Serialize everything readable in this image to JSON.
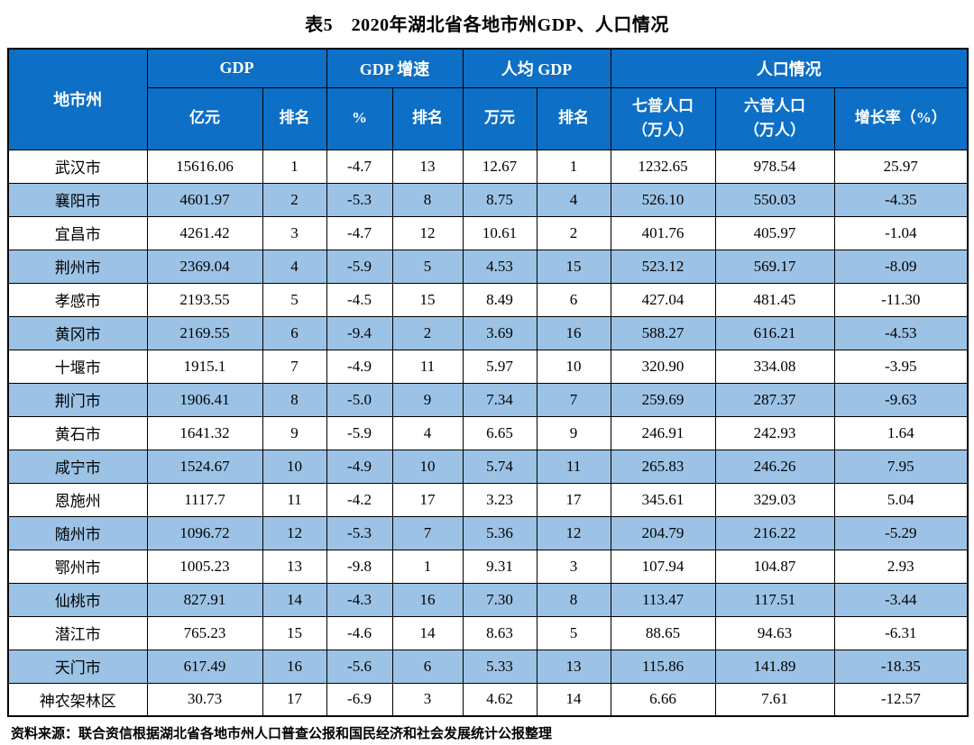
{
  "title": "表5　2020年湖北省各地市州GDP、人口情况",
  "colors": {
    "header_bg": "#0d6fc5",
    "alt_row_bg": "#9cc3e6",
    "border": "#000000",
    "header_text": "#ffffff"
  },
  "table": {
    "header": {
      "region_label": "地市州",
      "groups": [
        {
          "label": "GDP"
        },
        {
          "label": "GDP 增速"
        },
        {
          "label": "人均 GDP"
        },
        {
          "label": "人口情况"
        }
      ],
      "subheaders": [
        "亿元",
        "排名",
        "%",
        "排名",
        "万元",
        "排名",
        "七普人口\n（万人）",
        "六普人口\n（万人）",
        "增长率（%）"
      ]
    },
    "rows": [
      [
        "武汉市",
        "15616.06",
        "1",
        "-4.7",
        "13",
        "12.67",
        "1",
        "1232.65",
        "978.54",
        "25.97"
      ],
      [
        "襄阳市",
        "4601.97",
        "2",
        "-5.3",
        "8",
        "8.75",
        "4",
        "526.10",
        "550.03",
        "-4.35"
      ],
      [
        "宜昌市",
        "4261.42",
        "3",
        "-4.7",
        "12",
        "10.61",
        "2",
        "401.76",
        "405.97",
        "-1.04"
      ],
      [
        "荆州市",
        "2369.04",
        "4",
        "-5.9",
        "5",
        "4.53",
        "15",
        "523.12",
        "569.17",
        "-8.09"
      ],
      [
        "孝感市",
        "2193.55",
        "5",
        "-4.5",
        "15",
        "8.49",
        "6",
        "427.04",
        "481.45",
        "-11.30"
      ],
      [
        "黄冈市",
        "2169.55",
        "6",
        "-9.4",
        "2",
        "3.69",
        "16",
        "588.27",
        "616.21",
        "-4.53"
      ],
      [
        "十堰市",
        "1915.1",
        "7",
        "-4.9",
        "11",
        "5.97",
        "10",
        "320.90",
        "334.08",
        "-3.95"
      ],
      [
        "荆门市",
        "1906.41",
        "8",
        "-5.0",
        "9",
        "7.34",
        "7",
        "259.69",
        "287.37",
        "-9.63"
      ],
      [
        "黄石市",
        "1641.32",
        "9",
        "-5.9",
        "4",
        "6.65",
        "9",
        "246.91",
        "242.93",
        "1.64"
      ],
      [
        "咸宁市",
        "1524.67",
        "10",
        "-4.9",
        "10",
        "5.74",
        "11",
        "265.83",
        "246.26",
        "7.95"
      ],
      [
        "恩施州",
        "1117.7",
        "11",
        "-4.2",
        "17",
        "3.23",
        "17",
        "345.61",
        "329.03",
        "5.04"
      ],
      [
        "随州市",
        "1096.72",
        "12",
        "-5.3",
        "7",
        "5.36",
        "12",
        "204.79",
        "216.22",
        "-5.29"
      ],
      [
        "鄂州市",
        "1005.23",
        "13",
        "-9.8",
        "1",
        "9.31",
        "3",
        "107.94",
        "104.87",
        "2.93"
      ],
      [
        "仙桃市",
        "827.91",
        "14",
        "-4.3",
        "16",
        "7.30",
        "8",
        "113.47",
        "117.51",
        "-3.44"
      ],
      [
        "潜江市",
        "765.23",
        "15",
        "-4.6",
        "14",
        "8.63",
        "5",
        "88.65",
        "94.63",
        "-6.31"
      ],
      [
        "天门市",
        "617.49",
        "16",
        "-5.6",
        "6",
        "5.33",
        "13",
        "115.86",
        "141.89",
        "-18.35"
      ],
      [
        "神农架林区",
        "30.73",
        "17",
        "-6.9",
        "3",
        "4.62",
        "14",
        "6.66",
        "7.61",
        "-12.57"
      ]
    ]
  },
  "footer": {
    "source": "资料来源：联合资信根据湖北省各地市州人口普查公报和国民经济和社会发展统计公报整理"
  }
}
